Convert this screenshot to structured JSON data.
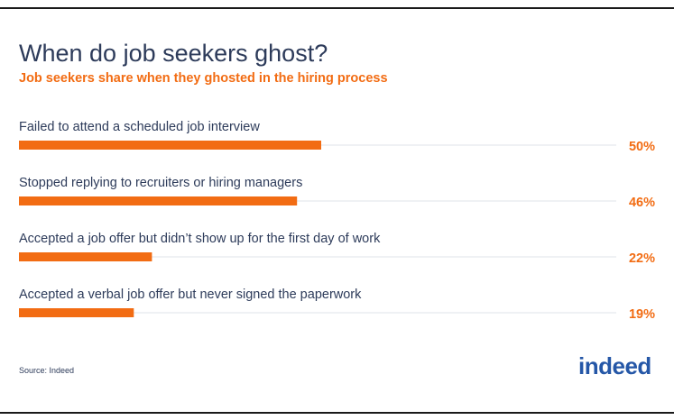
{
  "title": "When do job seekers ghost?",
  "subtitle": "Job seekers share when they ghosted in the hiring process",
  "source": "Source: Indeed",
  "logo_text": "indeed",
  "colors": {
    "bar": "#f26c13",
    "track": "#dfe3ea",
    "label": "#2d3b5a",
    "value": "#f26c13",
    "logo": "#2557a7"
  },
  "chart_data": {
    "type": "bar",
    "orientation": "horizontal",
    "categories": [
      "Failed to attend a scheduled job interview",
      "Stopped replying to recruiters or hiring managers",
      "Accepted a job offer but didn’t show up for the first day of work",
      "Accepted a verbal job offer but never signed the paperwork"
    ],
    "values": [
      50,
      46,
      22,
      19
    ],
    "value_labels": [
      "50%",
      "46%",
      "22%",
      "19%"
    ],
    "unit": "%",
    "xlim": [
      0,
      100
    ],
    "grid": false,
    "legend": "none"
  }
}
